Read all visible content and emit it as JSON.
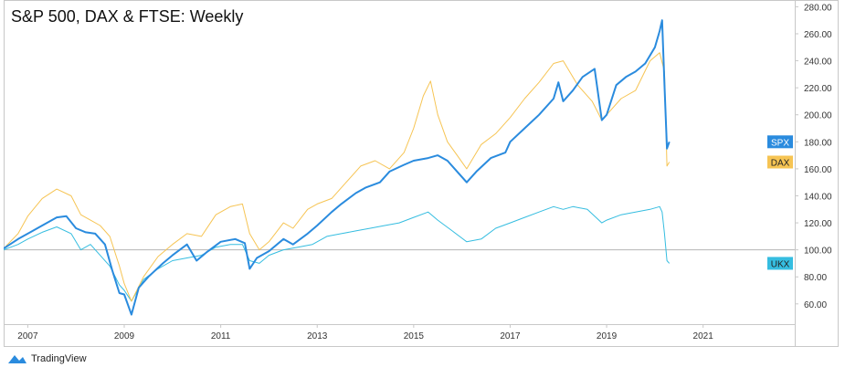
{
  "chart_data": {
    "type": "line",
    "title": "S&P 500, DAX & FTSE: Weekly",
    "y_ticks": [
      "280.00",
      "260.00",
      "240.00",
      "220.00",
      "200.00",
      "180.00",
      "160.00",
      "140.00",
      "120.00",
      "100.00",
      "80.00",
      "60.00"
    ],
    "ylim": [
      45,
      285
    ],
    "x_ticks": [
      "2007",
      "2009",
      "2011",
      "2013",
      "2015",
      "2017",
      "2019",
      "2021"
    ],
    "xlim": [
      2006.5,
      2022.9
    ],
    "reference_line": 100,
    "grid": false,
    "series": [
      {
        "name": "SPX",
        "color": "#2a8bde",
        "x": [
          2006.5,
          2006.8,
          2007.0,
          2007.3,
          2007.6,
          2007.8,
          2008.0,
          2008.2,
          2008.4,
          2008.6,
          2008.75,
          2008.9,
          2009.0,
          2009.15,
          2009.3,
          2009.5,
          2009.8,
          2010.0,
          2010.3,
          2010.5,
          2010.7,
          2011.0,
          2011.3,
          2011.5,
          2011.6,
          2011.75,
          2012.0,
          2012.3,
          2012.5,
          2012.8,
          2013.0,
          2013.3,
          2013.5,
          2013.8,
          2014.0,
          2014.3,
          2014.5,
          2014.8,
          2015.0,
          2015.3,
          2015.5,
          2015.7,
          2015.9,
          2016.1,
          2016.3,
          2016.6,
          2016.9,
          2017.0,
          2017.3,
          2017.6,
          2017.9,
          2018.0,
          2018.1,
          2018.3,
          2018.5,
          2018.75,
          2018.9,
          2019.0,
          2019.2,
          2019.4,
          2019.6,
          2019.8,
          2020.0,
          2020.1,
          2020.15,
          2020.2,
          2020.25,
          2020.3
        ],
        "values": [
          101,
          108,
          112,
          118,
          124,
          125,
          116,
          113,
          112,
          104,
          85,
          68,
          67,
          52,
          72,
          80,
          90,
          96,
          104,
          92,
          98,
          106,
          108,
          105,
          86,
          94,
          99,
          108,
          104,
          112,
          118,
          128,
          134,
          142,
          146,
          150,
          158,
          163,
          166,
          168,
          170,
          166,
          158,
          150,
          158,
          168,
          172,
          180,
          190,
          200,
          212,
          224,
          210,
          218,
          228,
          234,
          196,
          200,
          222,
          228,
          232,
          238,
          250,
          262,
          270,
          222,
          175,
          180
        ]
      },
      {
        "name": "DAX",
        "color": "#f6c453",
        "x": [
          2006.5,
          2006.8,
          2007.0,
          2007.3,
          2007.6,
          2007.9,
          2008.1,
          2008.3,
          2008.5,
          2008.7,
          2008.9,
          2009.0,
          2009.15,
          2009.4,
          2009.7,
          2010.0,
          2010.3,
          2010.6,
          2010.9,
          2011.2,
          2011.45,
          2011.6,
          2011.8,
          2012.0,
          2012.3,
          2012.5,
          2012.8,
          2013.0,
          2013.3,
          2013.6,
          2013.9,
          2014.2,
          2014.5,
          2014.8,
          2015.0,
          2015.2,
          2015.35,
          2015.5,
          2015.7,
          2015.9,
          2016.1,
          2016.4,
          2016.7,
          2017.0,
          2017.3,
          2017.6,
          2017.9,
          2018.1,
          2018.4,
          2018.7,
          2018.9,
          2019.0,
          2019.3,
          2019.6,
          2019.9,
          2020.1,
          2020.2,
          2020.25,
          2020.3
        ],
        "values": [
          101,
          112,
          125,
          138,
          145,
          140,
          126,
          122,
          118,
          110,
          88,
          75,
          62,
          80,
          95,
          104,
          112,
          110,
          126,
          132,
          134,
          112,
          100,
          106,
          120,
          116,
          130,
          134,
          138,
          150,
          162,
          166,
          160,
          172,
          190,
          214,
          225,
          200,
          180,
          170,
          160,
          178,
          186,
          198,
          212,
          224,
          238,
          240,
          222,
          210,
          196,
          200,
          212,
          218,
          240,
          246,
          232,
          162,
          165
        ]
      },
      {
        "name": "UKX",
        "color": "#35bde0",
        "x": [
          2006.5,
          2006.8,
          2007.0,
          2007.3,
          2007.6,
          2007.9,
          2008.1,
          2008.3,
          2008.5,
          2008.7,
          2008.9,
          2009.0,
          2009.15,
          2009.4,
          2009.7,
          2010.0,
          2010.3,
          2010.6,
          2010.9,
          2011.2,
          2011.45,
          2011.6,
          2011.8,
          2012.0,
          2012.3,
          2012.6,
          2012.9,
          2013.2,
          2013.5,
          2013.8,
          2014.1,
          2014.4,
          2014.7,
          2015.0,
          2015.3,
          2015.5,
          2015.8,
          2016.1,
          2016.4,
          2016.7,
          2017.0,
          2017.3,
          2017.6,
          2017.9,
          2018.1,
          2018.3,
          2018.6,
          2018.9,
          2019.0,
          2019.3,
          2019.6,
          2019.9,
          2020.1,
          2020.15,
          2020.2,
          2020.25,
          2020.3
        ],
        "values": [
          100,
          104,
          108,
          113,
          117,
          112,
          100,
          104,
          96,
          88,
          74,
          70,
          62,
          78,
          86,
          92,
          94,
          96,
          102,
          104,
          104,
          92,
          90,
          96,
          100,
          102,
          104,
          110,
          112,
          114,
          116,
          118,
          120,
          124,
          128,
          122,
          114,
          106,
          108,
          116,
          120,
          124,
          128,
          132,
          130,
          132,
          130,
          120,
          122,
          126,
          128,
          130,
          132,
          128,
          112,
          92,
          90
        ]
      }
    ],
    "last_value_tags": [
      {
        "label": "SPX",
        "value": 180,
        "bg": "#2a8bde",
        "fg": "#ffffff"
      },
      {
        "label": "DAX",
        "value": 165,
        "bg": "#f6c453",
        "fg": "#222222"
      },
      {
        "label": "UKX",
        "value": 90,
        "bg": "#35bde0",
        "fg": "#222222"
      }
    ]
  },
  "footer": {
    "brand": "TradingView"
  }
}
